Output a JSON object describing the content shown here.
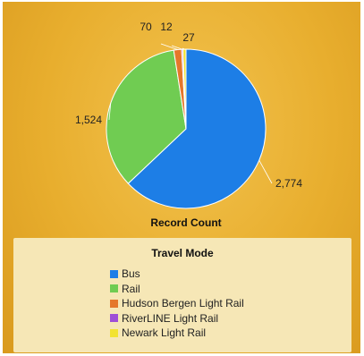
{
  "chart_data": {
    "type": "pie",
    "title": "",
    "value_title": "Record Count",
    "slices": [
      {
        "name": "Bus",
        "label": "2,774",
        "value": 2774,
        "color": "#1d7ee6"
      },
      {
        "name": "Rail",
        "label": "1,524",
        "value": 1524,
        "color": "#70cc52"
      },
      {
        "name": "Hudson Bergen Light Rail",
        "label": "70",
        "value": 70,
        "color": "#e5772a"
      },
      {
        "name": "RiverLINE Light Rail",
        "label": "12",
        "value": 12,
        "color": "#9f4fd6"
      },
      {
        "name": "Newark Light Rail",
        "label": "27",
        "value": 27,
        "color": "#f2e330"
      }
    ],
    "legend": {
      "title": "Travel Mode",
      "position": "bottom"
    }
  }
}
